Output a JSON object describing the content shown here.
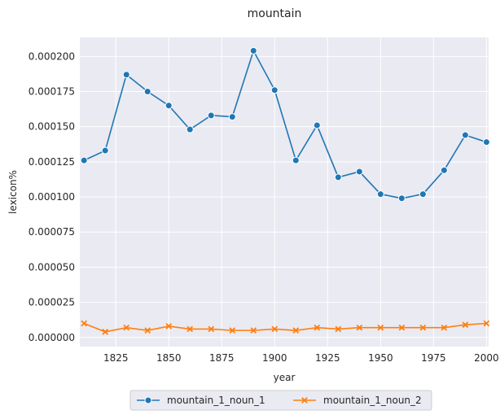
{
  "chart_data": {
    "type": "line",
    "title": "mountain",
    "xlabel": "year",
    "ylabel": "lexicon%",
    "x": [
      1810,
      1820,
      1830,
      1840,
      1850,
      1860,
      1870,
      1880,
      1890,
      1900,
      1910,
      1920,
      1930,
      1940,
      1950,
      1960,
      1970,
      1980,
      1990,
      2000
    ],
    "series": [
      {
        "name": "mountain_1_noun_1",
        "marker": "circle",
        "color": "#1f77b4",
        "values": [
          0.000126,
          0.000133,
          0.000187,
          0.000175,
          0.000165,
          0.000148,
          0.000158,
          0.000157,
          0.000204,
          0.000176,
          0.000126,
          0.000151,
          0.000114,
          0.000118,
          0.000102,
          9.9e-05,
          0.000102,
          0.000119,
          0.000144,
          0.000139
        ]
      },
      {
        "name": "mountain_1_noun_2",
        "marker": "x",
        "color": "#ff7f0e",
        "values": [
          1e-05,
          4e-06,
          7e-06,
          5e-06,
          8e-06,
          6e-06,
          6e-06,
          5e-06,
          5e-06,
          6e-06,
          5e-06,
          7e-06,
          6e-06,
          7e-06,
          7e-06,
          7e-06,
          7e-06,
          7e-06,
          9e-06,
          1e-05
        ]
      }
    ],
    "xlim": [
      1808,
      2001
    ],
    "ylim": [
      -6.5e-06,
      0.0002135
    ],
    "xticks": [
      1825,
      1850,
      1875,
      1900,
      1925,
      1950,
      1975,
      2000
    ],
    "xtick_labels": [
      "1825",
      "1850",
      "1875",
      "1900",
      "1925",
      "1950",
      "1975",
      "2000"
    ],
    "yticks": [
      0.0,
      2.5e-05,
      5e-05,
      7.5e-05,
      0.0001,
      0.000125,
      0.00015,
      0.000175,
      0.0002
    ],
    "ytick_labels": [
      "0.000000",
      "0.000025",
      "0.000050",
      "0.000075",
      "0.000100",
      "0.000125",
      "0.000150",
      "0.000175",
      "0.000200"
    ],
    "grid": true,
    "legend_position": "bottom-center",
    "background": "#eaeaf2"
  }
}
